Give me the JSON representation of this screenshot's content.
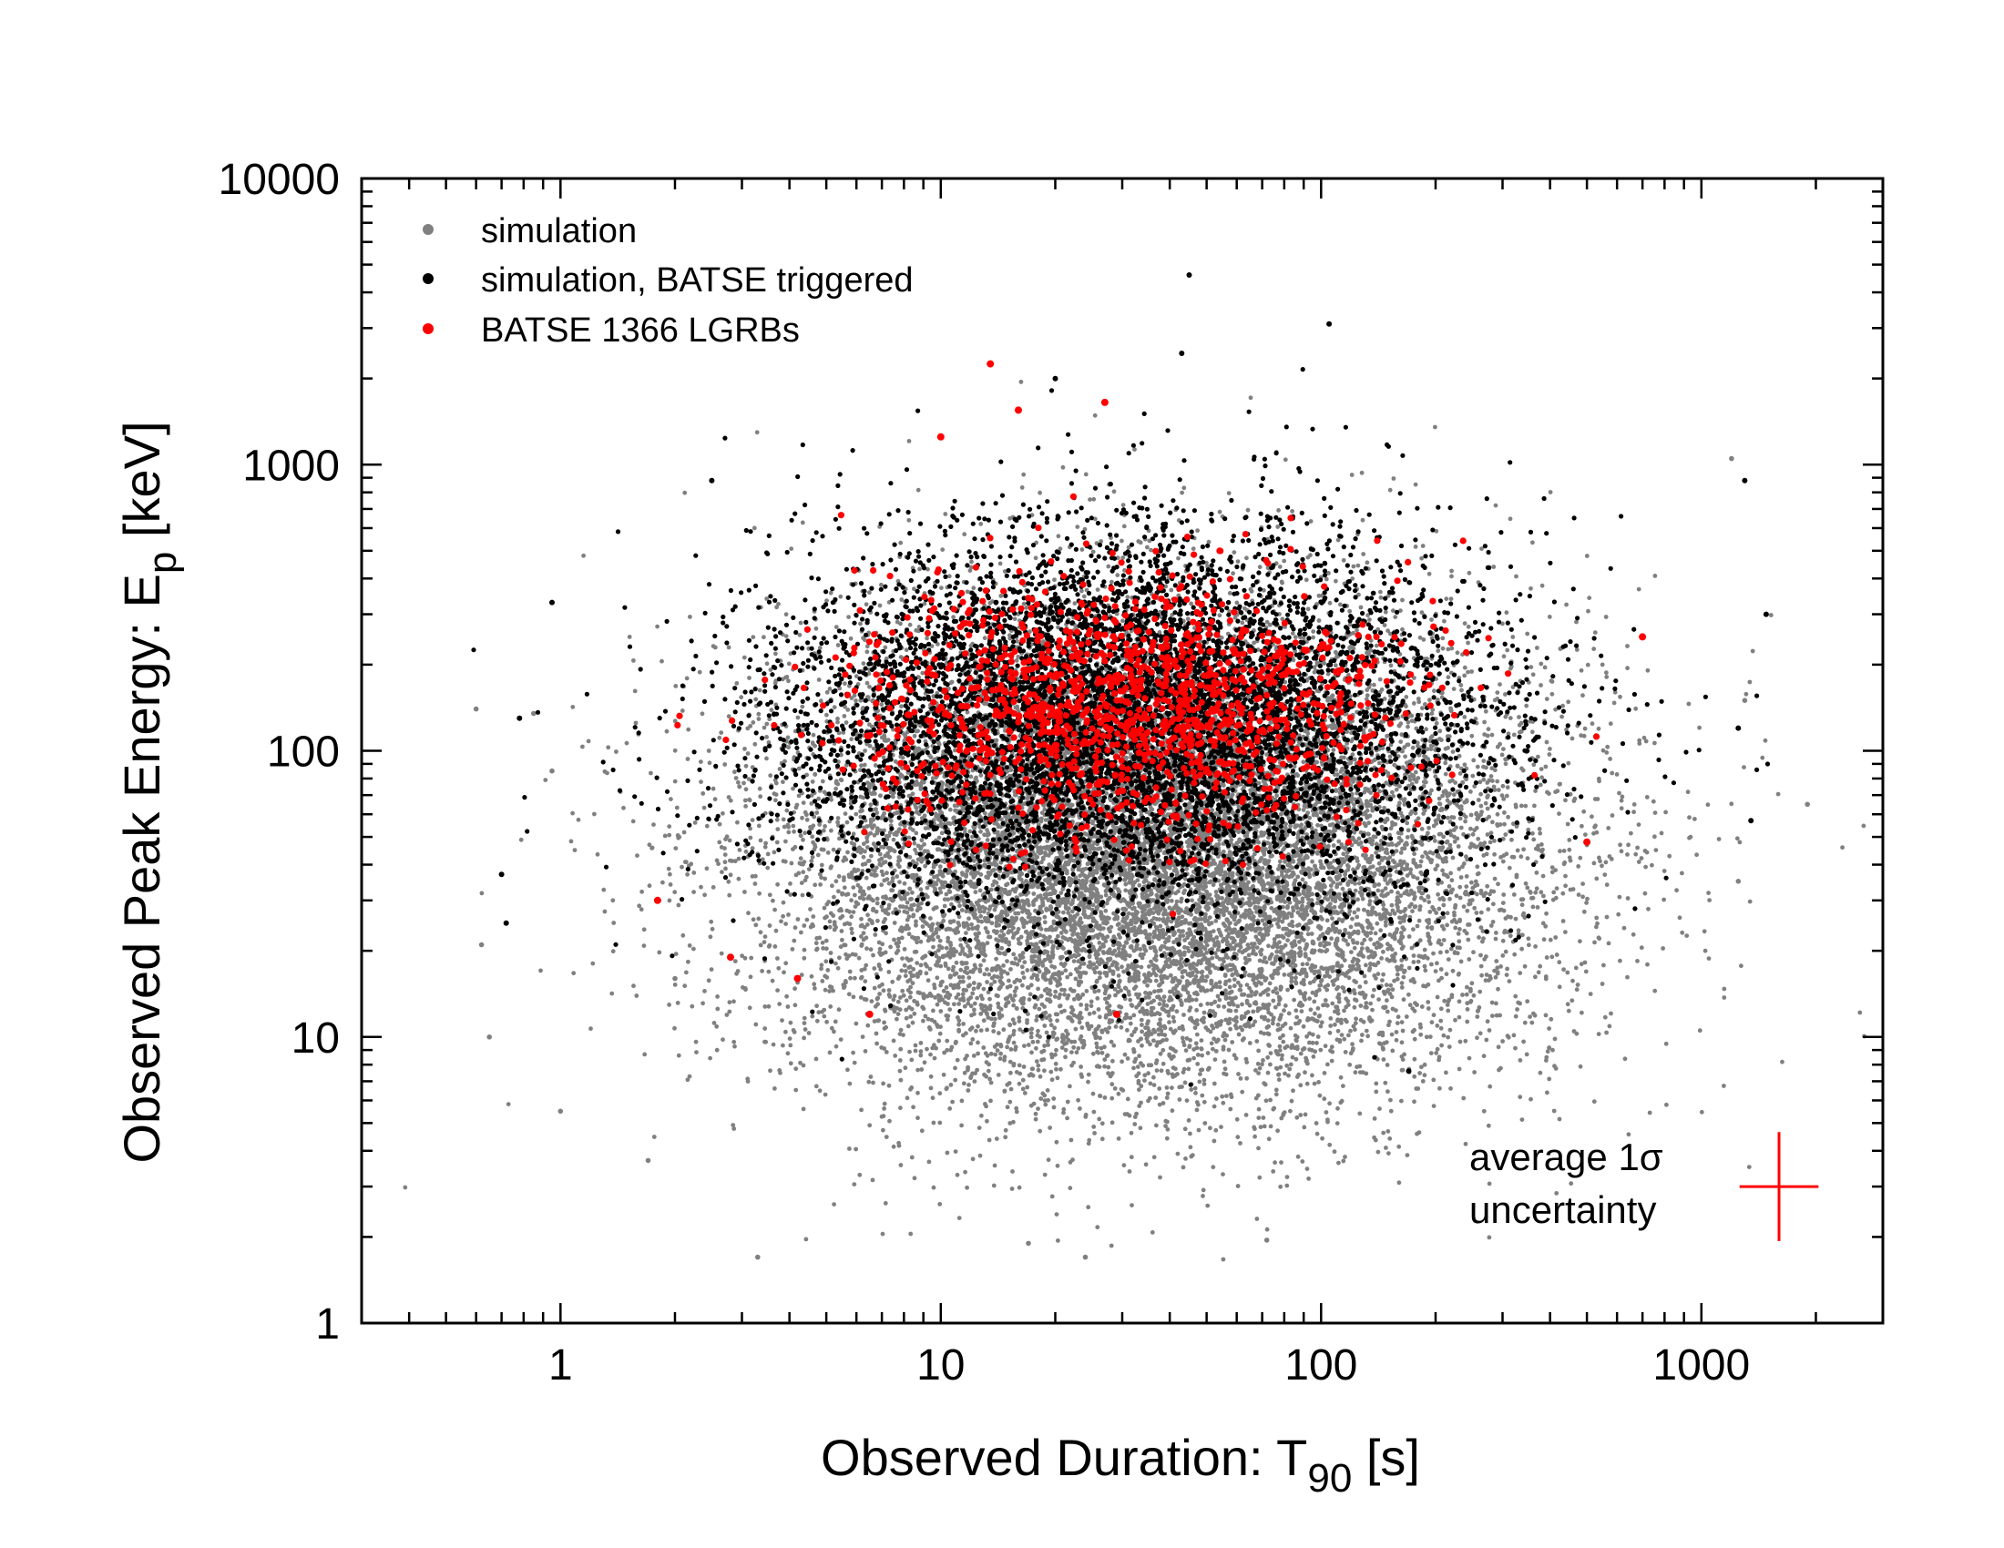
{
  "chart_data": {
    "type": "scatter",
    "title": "",
    "xlabel": {
      "main": "Observed Duration: T",
      "sub": "90",
      "suffix": " [s]"
    },
    "ylabel": {
      "main": "Observed Peak Energy: E",
      "sub": "p",
      "suffix": " [keV]"
    },
    "xscale": "log",
    "yscale": "log",
    "xlim": [
      0.3,
      3000
    ],
    "ylim": [
      1,
      10000
    ],
    "x_ticks": [
      {
        "value": 1,
        "label": "1"
      },
      {
        "value": 10,
        "label": "10"
      },
      {
        "value": 100,
        "label": "100"
      },
      {
        "value": 1000,
        "label": "1000"
      }
    ],
    "y_ticks": [
      {
        "value": 1,
        "label": "1"
      },
      {
        "value": 10,
        "label": "10"
      },
      {
        "value": 100,
        "label": "100"
      },
      {
        "value": 1000,
        "label": "1000"
      },
      {
        "value": 10000,
        "label": "10000"
      }
    ],
    "legend_position": "top-left",
    "series": [
      {
        "name": "simulation",
        "color": "#808080",
        "description_counts": 14000,
        "log10_center": {
          "x": 1.55,
          "y": 1.65
        },
        "log10_spread": {
          "x": 0.5,
          "y": 0.42
        },
        "outliers": [
          {
            "x": 0.6,
            "y": 140
          },
          {
            "x": 0.62,
            "y": 21
          },
          {
            "x": 0.65,
            "y": 10
          },
          {
            "x": 0.85,
            "y": 135
          },
          {
            "x": 0.95,
            "y": 85
          },
          {
            "x": 1.0,
            "y": 5.5
          },
          {
            "x": 1.7,
            "y": 3.7
          },
          {
            "x": 2.0,
            "y": 16
          },
          {
            "x": 1300,
            "y": 150
          },
          {
            "x": 1900,
            "y": 65
          },
          {
            "x": 1200,
            "y": 1050
          },
          {
            "x": 1250,
            "y": 35
          },
          {
            "x": 3.3,
            "y": 1.7
          },
          {
            "x": 17,
            "y": 1.9
          },
          {
            "x": 24,
            "y": 1.7
          },
          {
            "x": 72,
            "y": 1.95
          }
        ]
      },
      {
        "name": "simulation, BATSE triggered",
        "color": "#000000",
        "description_counts": 8000,
        "log10_center": {
          "x": 1.5,
          "y": 2.1
        },
        "log10_spread": {
          "x": 0.45,
          "y": 0.32
        },
        "outliers": [
          {
            "x": 0.95,
            "y": 330
          },
          {
            "x": 0.78,
            "y": 130
          },
          {
            "x": 0.72,
            "y": 25
          },
          {
            "x": 0.7,
            "y": 37
          },
          {
            "x": 2.5,
            "y": 880
          },
          {
            "x": 45,
            "y": 4600
          },
          {
            "x": 105,
            "y": 3100
          },
          {
            "x": 43,
            "y": 2450
          },
          {
            "x": 20,
            "y": 2000
          },
          {
            "x": 1300,
            "y": 880
          },
          {
            "x": 1480,
            "y": 300
          },
          {
            "x": 1350,
            "y": 57
          },
          {
            "x": 170,
            "y": 7.6
          },
          {
            "x": 1250,
            "y": 120
          }
        ]
      },
      {
        "name": "BATSE 1366 LGRBs",
        "color": "#ff0000",
        "description_counts": 1366,
        "log10_center": {
          "x": 1.5,
          "y": 2.15
        },
        "log10_spread": {
          "x": 0.35,
          "y": 0.22
        },
        "outliers": [
          {
            "x": 13.5,
            "y": 2250
          },
          {
            "x": 27,
            "y": 1650
          },
          {
            "x": 16,
            "y": 1550
          },
          {
            "x": 10,
            "y": 1250
          },
          {
            "x": 1.8,
            "y": 30
          },
          {
            "x": 2.8,
            "y": 19
          },
          {
            "x": 4.2,
            "y": 16
          },
          {
            "x": 6.5,
            "y": 12
          },
          {
            "x": 29,
            "y": 12
          },
          {
            "x": 500,
            "y": 48
          },
          {
            "x": 700,
            "y": 250
          }
        ]
      }
    ],
    "annotation": {
      "line1": "average 1σ",
      "line2": "uncertainty",
      "position": "bottom-right",
      "error_bar": {
        "x": 1600,
        "y": 3,
        "x_factor": 1.27,
        "y_factor": 1.55
      },
      "color": "#ff0000"
    }
  }
}
